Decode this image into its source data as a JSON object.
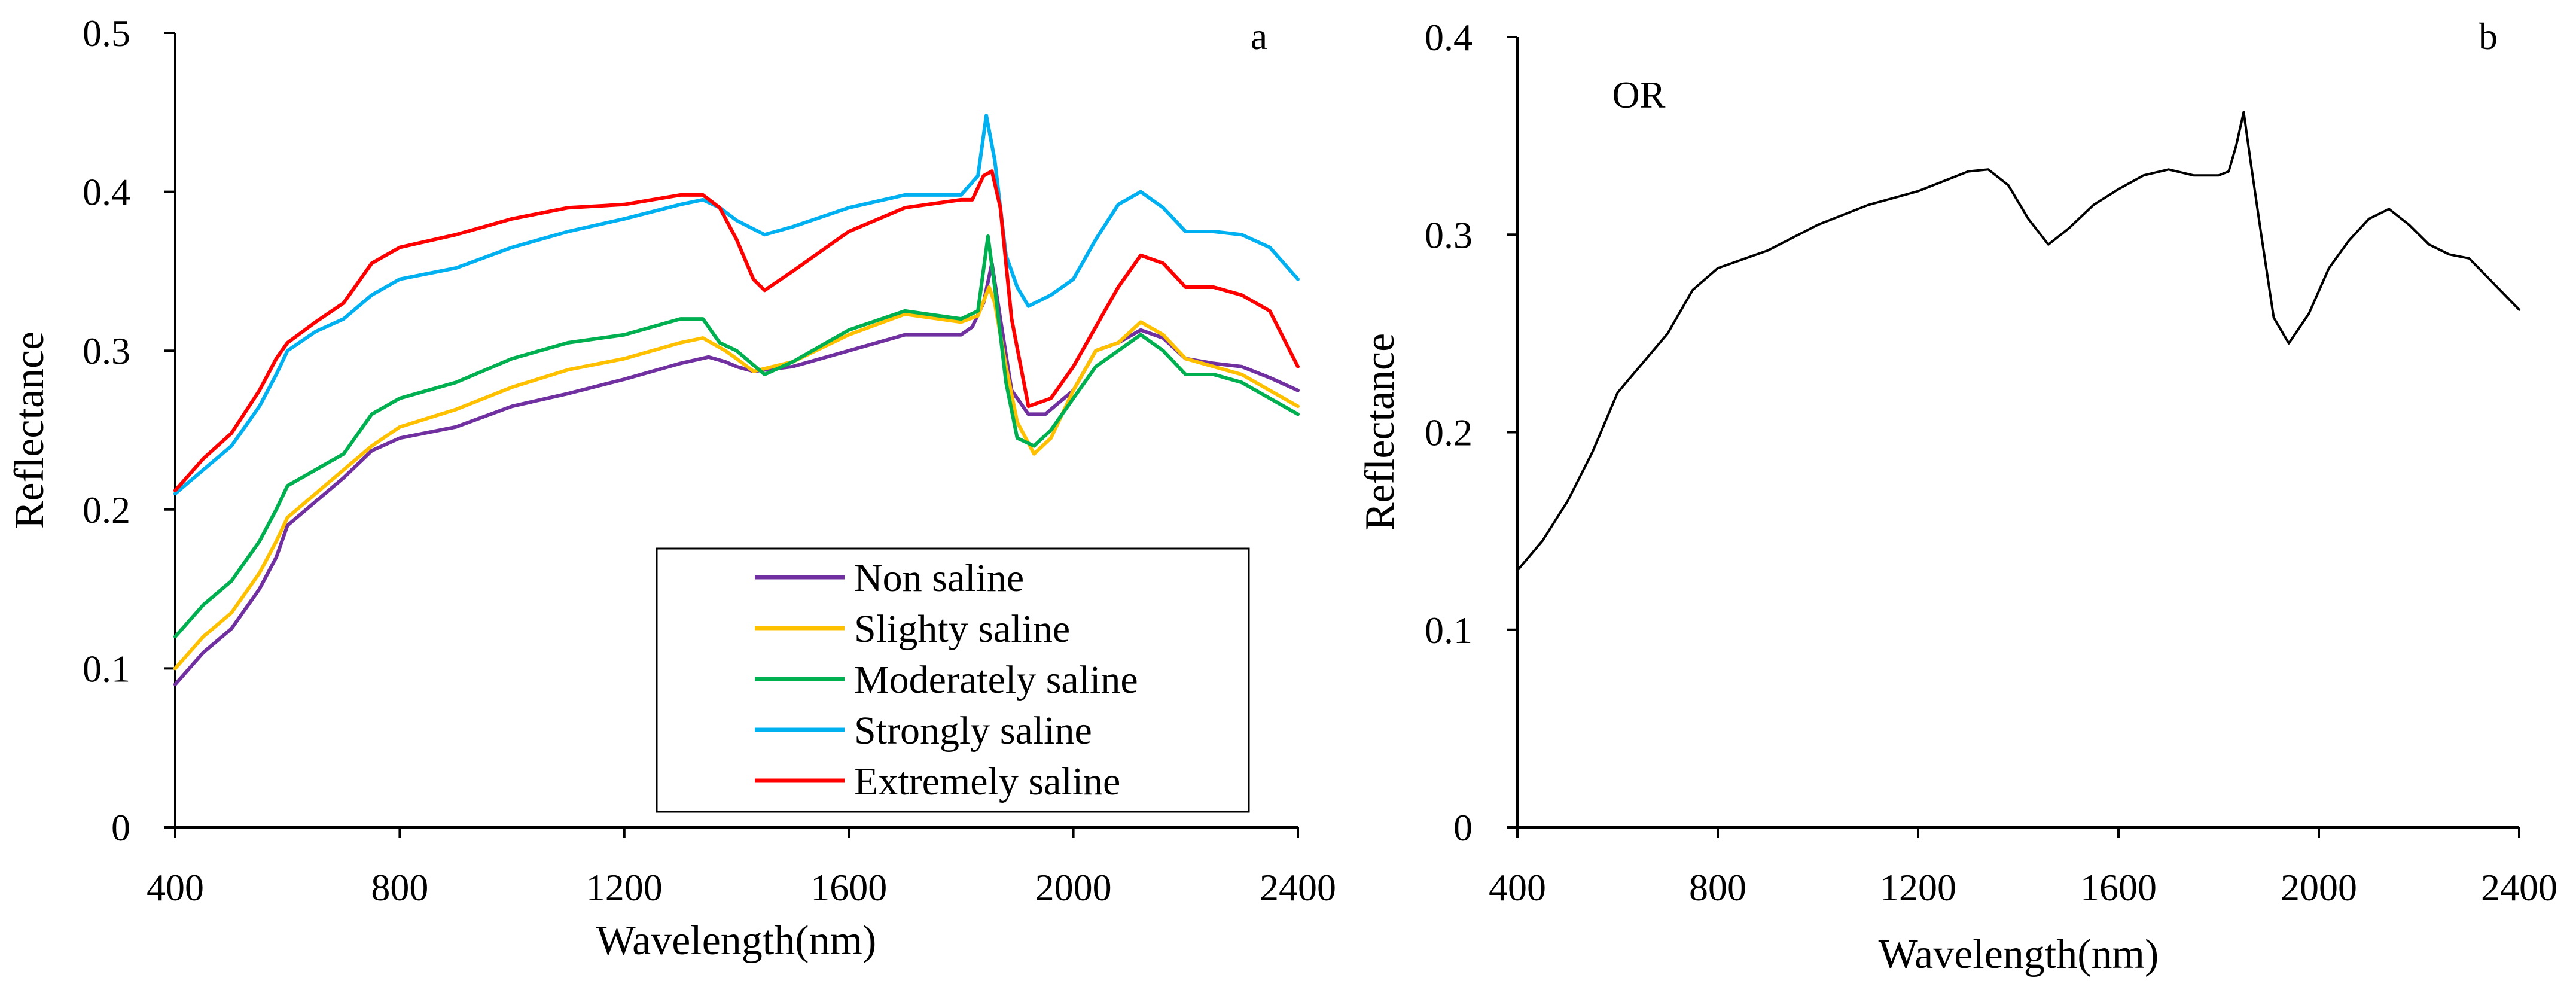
{
  "chart_data": [
    {
      "type": "line",
      "panel_label": "a",
      "title": "",
      "xlabel": "Wavelength(nm)",
      "ylabel": "Reflectance",
      "xlim": [
        400,
        2400
      ],
      "ylim": [
        0,
        0.5
      ],
      "xticks": [
        400,
        800,
        1200,
        1600,
        2000,
        2400
      ],
      "xtick_labels": [
        "400",
        "800",
        "1200",
        "1600",
        "2000",
        "2400"
      ],
      "yticks": [
        0,
        0.1,
        0.2,
        0.3,
        0.4,
        0.5
      ],
      "ytick_labels": [
        "0",
        "0.1",
        "0.2",
        "0.3",
        "0.4",
        "0.5"
      ],
      "grid": false,
      "legend_position": "bottom-right",
      "series": [
        {
          "name": "Non saline",
          "color": "#7030A0",
          "points": [
            [
              400,
              0.09
            ],
            [
              450,
              0.11
            ],
            [
              500,
              0.125
            ],
            [
              550,
              0.15
            ],
            [
              580,
              0.17
            ],
            [
              600,
              0.19
            ],
            [
              650,
              0.205
            ],
            [
              700,
              0.22
            ],
            [
              750,
              0.237
            ],
            [
              800,
              0.245
            ],
            [
              900,
              0.252
            ],
            [
              1000,
              0.265
            ],
            [
              1100,
              0.273
            ],
            [
              1200,
              0.282
            ],
            [
              1300,
              0.292
            ],
            [
              1350,
              0.296
            ],
            [
              1380,
              0.293
            ],
            [
              1400,
              0.29
            ],
            [
              1430,
              0.287
            ],
            [
              1500,
              0.29
            ],
            [
              1600,
              0.3
            ],
            [
              1700,
              0.31
            ],
            [
              1800,
              0.31
            ],
            [
              1820,
              0.315
            ],
            [
              1840,
              0.33
            ],
            [
              1855,
              0.355
            ],
            [
              1870,
              0.32
            ],
            [
              1890,
              0.275
            ],
            [
              1920,
              0.26
            ],
            [
              1950,
              0.26
            ],
            [
              2000,
              0.275
            ],
            [
              2040,
              0.3
            ],
            [
              2080,
              0.305
            ],
            [
              2120,
              0.313
            ],
            [
              2160,
              0.308
            ],
            [
              2200,
              0.295
            ],
            [
              2250,
              0.292
            ],
            [
              2300,
              0.29
            ],
            [
              2350,
              0.283
            ],
            [
              2400,
              0.275
            ]
          ]
        },
        {
          "name": "Slighty saline",
          "color": "#FFC000",
          "points": [
            [
              400,
              0.1
            ],
            [
              450,
              0.12
            ],
            [
              500,
              0.135
            ],
            [
              550,
              0.16
            ],
            [
              580,
              0.18
            ],
            [
              600,
              0.195
            ],
            [
              650,
              0.21
            ],
            [
              700,
              0.225
            ],
            [
              750,
              0.24
            ],
            [
              800,
              0.252
            ],
            [
              900,
              0.263
            ],
            [
              1000,
              0.277
            ],
            [
              1100,
              0.288
            ],
            [
              1200,
              0.295
            ],
            [
              1300,
              0.305
            ],
            [
              1340,
              0.308
            ],
            [
              1380,
              0.3
            ],
            [
              1400,
              0.295
            ],
            [
              1430,
              0.287
            ],
            [
              1500,
              0.293
            ],
            [
              1600,
              0.31
            ],
            [
              1700,
              0.323
            ],
            [
              1800,
              0.318
            ],
            [
              1830,
              0.322
            ],
            [
              1850,
              0.34
            ],
            [
              1860,
              0.33
            ],
            [
              1880,
              0.29
            ],
            [
              1900,
              0.255
            ],
            [
              1930,
              0.235
            ],
            [
              1960,
              0.245
            ],
            [
              2000,
              0.275
            ],
            [
              2040,
              0.3
            ],
            [
              2080,
              0.305
            ],
            [
              2120,
              0.318
            ],
            [
              2160,
              0.31
            ],
            [
              2200,
              0.295
            ],
            [
              2250,
              0.29
            ],
            [
              2300,
              0.285
            ],
            [
              2350,
              0.275
            ],
            [
              2400,
              0.265
            ]
          ]
        },
        {
          "name": "Moderately saline",
          "color": "#00B050",
          "points": [
            [
              400,
              0.12
            ],
            [
              450,
              0.14
            ],
            [
              500,
              0.155
            ],
            [
              550,
              0.18
            ],
            [
              580,
              0.2
            ],
            [
              600,
              0.215
            ],
            [
              650,
              0.225
            ],
            [
              700,
              0.235
            ],
            [
              750,
              0.26
            ],
            [
              800,
              0.27
            ],
            [
              900,
              0.28
            ],
            [
              1000,
              0.295
            ],
            [
              1100,
              0.305
            ],
            [
              1200,
              0.31
            ],
            [
              1300,
              0.32
            ],
            [
              1340,
              0.32
            ],
            [
              1370,
              0.305
            ],
            [
              1400,
              0.3
            ],
            [
              1450,
              0.285
            ],
            [
              1500,
              0.293
            ],
            [
              1600,
              0.313
            ],
            [
              1700,
              0.325
            ],
            [
              1800,
              0.32
            ],
            [
              1830,
              0.325
            ],
            [
              1848,
              0.372
            ],
            [
              1860,
              0.34
            ],
            [
              1880,
              0.28
            ],
            [
              1900,
              0.245
            ],
            [
              1930,
              0.24
            ],
            [
              1960,
              0.25
            ],
            [
              2000,
              0.27
            ],
            [
              2040,
              0.29
            ],
            [
              2080,
              0.3
            ],
            [
              2120,
              0.31
            ],
            [
              2160,
              0.3
            ],
            [
              2200,
              0.285
            ],
            [
              2250,
              0.285
            ],
            [
              2300,
              0.28
            ],
            [
              2350,
              0.27
            ],
            [
              2400,
              0.26
            ]
          ]
        },
        {
          "name": "Strongly saline",
          "color": "#00B0F0",
          "points": [
            [
              400,
              0.21
            ],
            [
              450,
              0.225
            ],
            [
              500,
              0.24
            ],
            [
              550,
              0.265
            ],
            [
              580,
              0.285
            ],
            [
              600,
              0.3
            ],
            [
              650,
              0.312
            ],
            [
              700,
              0.32
            ],
            [
              750,
              0.335
            ],
            [
              800,
              0.345
            ],
            [
              900,
              0.352
            ],
            [
              1000,
              0.365
            ],
            [
              1100,
              0.375
            ],
            [
              1200,
              0.383
            ],
            [
              1300,
              0.392
            ],
            [
              1340,
              0.395
            ],
            [
              1370,
              0.39
            ],
            [
              1400,
              0.382
            ],
            [
              1450,
              0.373
            ],
            [
              1500,
              0.378
            ],
            [
              1600,
              0.39
            ],
            [
              1700,
              0.398
            ],
            [
              1800,
              0.398
            ],
            [
              1830,
              0.41
            ],
            [
              1845,
              0.448
            ],
            [
              1860,
              0.42
            ],
            [
              1880,
              0.36
            ],
            [
              1900,
              0.34
            ],
            [
              1920,
              0.328
            ],
            [
              1960,
              0.335
            ],
            [
              2000,
              0.345
            ],
            [
              2040,
              0.37
            ],
            [
              2080,
              0.392
            ],
            [
              2120,
              0.4
            ],
            [
              2160,
              0.39
            ],
            [
              2200,
              0.375
            ],
            [
              2250,
              0.375
            ],
            [
              2300,
              0.373
            ],
            [
              2350,
              0.365
            ],
            [
              2400,
              0.345
            ]
          ]
        },
        {
          "name": "Extremely saline",
          "color": "#FF0000",
          "points": [
            [
              400,
              0.212
            ],
            [
              450,
              0.232
            ],
            [
              500,
              0.248
            ],
            [
              550,
              0.275
            ],
            [
              580,
              0.295
            ],
            [
              600,
              0.305
            ],
            [
              650,
              0.318
            ],
            [
              700,
              0.33
            ],
            [
              750,
              0.355
            ],
            [
              800,
              0.365
            ],
            [
              900,
              0.373
            ],
            [
              1000,
              0.383
            ],
            [
              1100,
              0.39
            ],
            [
              1200,
              0.392
            ],
            [
              1300,
              0.398
            ],
            [
              1340,
              0.398
            ],
            [
              1370,
              0.39
            ],
            [
              1400,
              0.37
            ],
            [
              1430,
              0.345
            ],
            [
              1450,
              0.338
            ],
            [
              1500,
              0.35
            ],
            [
              1600,
              0.375
            ],
            [
              1700,
              0.39
            ],
            [
              1800,
              0.395
            ],
            [
              1820,
              0.395
            ],
            [
              1840,
              0.41
            ],
            [
              1855,
              0.413
            ],
            [
              1870,
              0.39
            ],
            [
              1890,
              0.32
            ],
            [
              1920,
              0.265
            ],
            [
              1960,
              0.27
            ],
            [
              2000,
              0.29
            ],
            [
              2040,
              0.315
            ],
            [
              2080,
              0.34
            ],
            [
              2120,
              0.36
            ],
            [
              2160,
              0.355
            ],
            [
              2200,
              0.34
            ],
            [
              2250,
              0.34
            ],
            [
              2300,
              0.335
            ],
            [
              2350,
              0.325
            ],
            [
              2400,
              0.29
            ]
          ]
        }
      ]
    },
    {
      "type": "line",
      "panel_label": "b",
      "title": "",
      "annotation": "OR",
      "xlabel": "Wavelength(nm)",
      "ylabel": "Reflectance",
      "xlim": [
        400,
        2400
      ],
      "ylim": [
        0,
        0.4
      ],
      "xticks": [
        400,
        800,
        1200,
        1600,
        2000,
        2400
      ],
      "xtick_labels": [
        "400",
        "800",
        "1200",
        "1600",
        "2000",
        "2400"
      ],
      "yticks": [
        0,
        0.1,
        0.2,
        0.3,
        0.4
      ],
      "ytick_labels": [
        "0",
        "0.1",
        "0.2",
        "0.3",
        "0.4"
      ],
      "grid": false,
      "legend_position": "none",
      "series": [
        {
          "name": "OR",
          "color": "#000000",
          "points": [
            [
              400,
              0.13
            ],
            [
              450,
              0.145
            ],
            [
              500,
              0.165
            ],
            [
              550,
              0.19
            ],
            [
              600,
              0.22
            ],
            [
              650,
              0.235
            ],
            [
              700,
              0.25
            ],
            [
              750,
              0.272
            ],
            [
              800,
              0.283
            ],
            [
              900,
              0.292
            ],
            [
              1000,
              0.305
            ],
            [
              1100,
              0.315
            ],
            [
              1200,
              0.322
            ],
            [
              1300,
              0.332
            ],
            [
              1340,
              0.333
            ],
            [
              1380,
              0.325
            ],
            [
              1420,
              0.308
            ],
            [
              1460,
              0.295
            ],
            [
              1500,
              0.303
            ],
            [
              1550,
              0.315
            ],
            [
              1600,
              0.323
            ],
            [
              1650,
              0.33
            ],
            [
              1700,
              0.333
            ],
            [
              1750,
              0.33
            ],
            [
              1800,
              0.33
            ],
            [
              1820,
              0.332
            ],
            [
              1835,
              0.345
            ],
            [
              1850,
              0.362
            ],
            [
              1865,
              0.335
            ],
            [
              1885,
              0.3
            ],
            [
              1910,
              0.258
            ],
            [
              1940,
              0.245
            ],
            [
              1980,
              0.26
            ],
            [
              2020,
              0.283
            ],
            [
              2060,
              0.297
            ],
            [
              2100,
              0.308
            ],
            [
              2140,
              0.313
            ],
            [
              2180,
              0.305
            ],
            [
              2220,
              0.295
            ],
            [
              2260,
              0.29
            ],
            [
              2300,
              0.288
            ],
            [
              2350,
              0.275
            ],
            [
              2400,
              0.262
            ]
          ]
        }
      ]
    }
  ]
}
